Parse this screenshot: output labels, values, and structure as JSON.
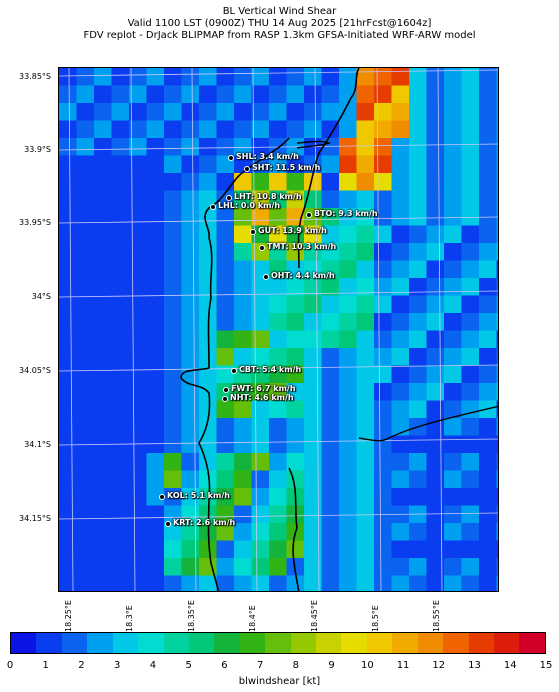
{
  "title": {
    "line1": "BL Vertical Wind Shear",
    "line2": "Valid 1100 LST (0900Z) THU 14 Aug 2025 [21hrFcst@1604z]",
    "line3": "FDV replot - DrJack BLIPMAP from RASP 1.3km GFSA-Initiated WRF-ARW model"
  },
  "lat_labels": [
    "33.85°S",
    "33.9°S",
    "33.95°S",
    "34°S",
    "34.05°S",
    "34.1°S",
    "34.15°S"
  ],
  "lon_labels": [
    "18.25°E",
    "18.3°E",
    "18.35°E",
    "18.4°E",
    "18.45°E",
    "18.5°E",
    "18.55°E"
  ],
  "stations": [
    {
      "label": "SHL: 3.4 km/h"
    },
    {
      "label": "SHT: 11.5 km/h"
    },
    {
      "label": "LHT: 10.8 km/h"
    },
    {
      "label": "LHL: 0.0 km/h"
    },
    {
      "label": "BTO: 9.3 km/h"
    },
    {
      "label": "GUT: 13.9 km/h"
    },
    {
      "label": "TMT: 10.3 km/h"
    },
    {
      "label": "OHT: 4.4 km/h"
    },
    {
      "label": "CBT: 5.4 km/h"
    },
    {
      "label": "FWT: 6.7 km/h"
    },
    {
      "label": "NHT: 4.6 km/h"
    },
    {
      "label": "KOL: 5.1 km/h"
    },
    {
      "label": "KRT: 2.6 km/h"
    }
  ],
  "colorbar": {
    "label": "blwindshear [kt]",
    "ticks": [
      "0",
      "1",
      "2",
      "3",
      "4",
      "5",
      "6",
      "7",
      "8",
      "9",
      "10",
      "11",
      "12",
      "13",
      "14",
      "15"
    ],
    "colors": [
      "#0a14e6",
      "#0a3cf0",
      "#0a64f0",
      "#00a0f0",
      "#00c8e6",
      "#00dcd2",
      "#00d2a0",
      "#00c878",
      "#14b43c",
      "#32b414",
      "#64be0a",
      "#96c800",
      "#c8d200",
      "#e6dc00",
      "#f0c800",
      "#f0aa00",
      "#f08c00",
      "#f06400",
      "#e63c00",
      "#dc1e0a",
      "#d20028"
    ]
  }
}
